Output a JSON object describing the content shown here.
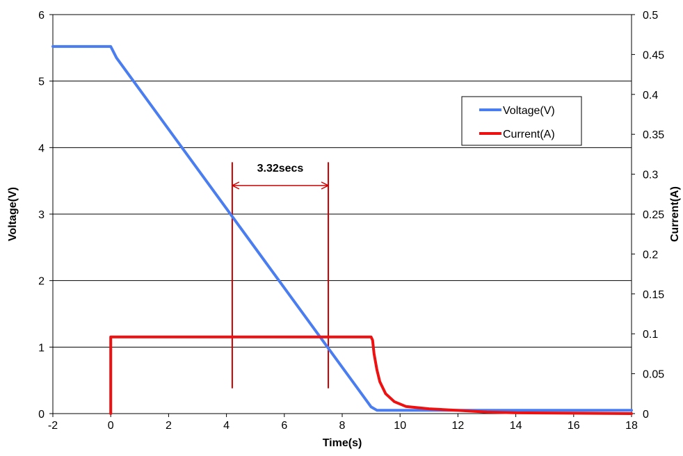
{
  "chart_data": {
    "type": "line",
    "title": "",
    "xlabel": "Time(s)",
    "ylabel": "Voltage(V)",
    "y2label": "Current(A)",
    "xlim": [
      -2,
      18
    ],
    "ylim": [
      0,
      6
    ],
    "y2lim": [
      0,
      0.5
    ],
    "x_ticks": [
      "-2",
      "0",
      "2",
      "4",
      "6",
      "8",
      "10",
      "12",
      "14",
      "16",
      "18"
    ],
    "y_ticks": [
      "0",
      "1",
      "2",
      "3",
      "4",
      "5",
      "6"
    ],
    "y2_ticks": [
      "0",
      "0.05",
      "0.1",
      "0.15",
      "0.2",
      "0.25",
      "0.3",
      "0.35",
      "0.4",
      "0.45",
      "0.5"
    ],
    "grid": "horizontal",
    "legend_position": "top-right",
    "series": [
      {
        "name": "Voltage(V)",
        "axis": "left",
        "color": "#4A7EF0",
        "x": [
          -2,
          0,
          0.2,
          9.0,
          9.2,
          10,
          12,
          18
        ],
        "y": [
          5.52,
          5.52,
          5.35,
          0.1,
          0.05,
          0.05,
          0.05,
          0.05
        ]
      },
      {
        "name": "Current(A)",
        "axis": "right",
        "color": "#EE1111",
        "x": [
          0,
          0,
          0.03,
          9.0,
          9.05,
          9.1,
          9.2,
          9.3,
          9.5,
          9.8,
          10.2,
          11,
          12,
          13,
          14,
          18
        ],
        "y": [
          0,
          0.096,
          0.096,
          0.096,
          0.092,
          0.075,
          0.055,
          0.04,
          0.025,
          0.015,
          0.009,
          0.006,
          0.004,
          0.002,
          0.001,
          0.0
        ]
      }
    ],
    "annotations": [
      {
        "text": "3.32secs",
        "color": "#CC0000",
        "vlines_x": [
          4.2,
          7.52
        ],
        "vline_y_range": [
          0.38,
          3.78
        ],
        "arrow_y": 3.43
      }
    ]
  }
}
